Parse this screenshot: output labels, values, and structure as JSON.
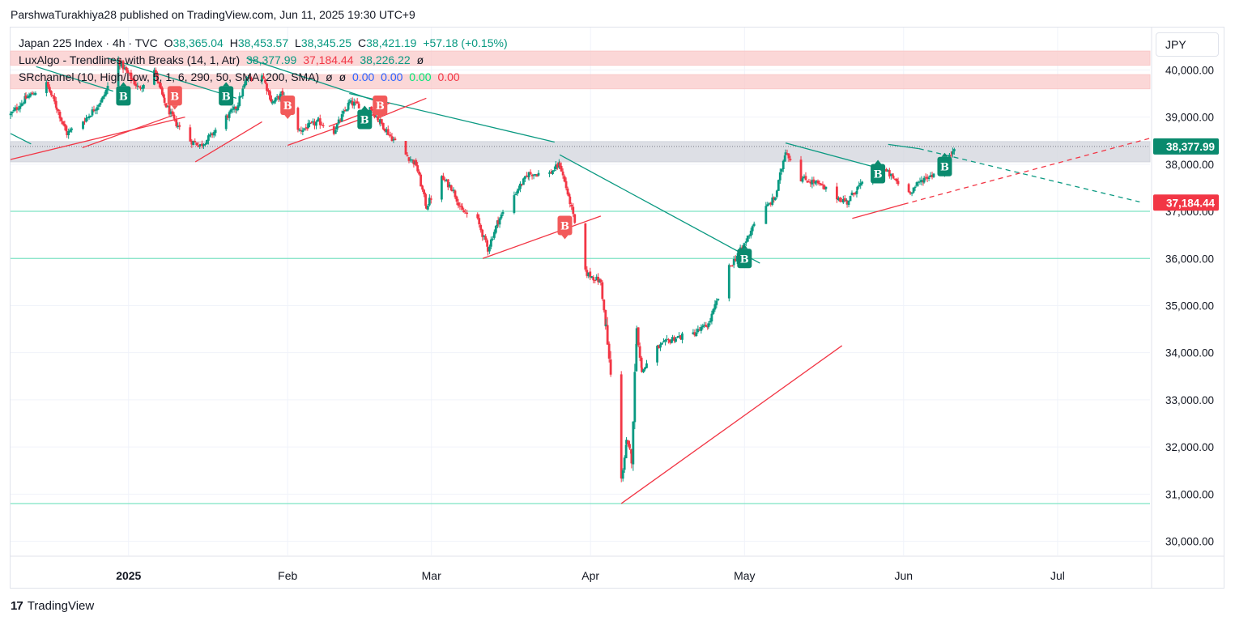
{
  "header": {
    "publisher_line": "ParshwaTurakhiya28 published on TradingView.com, Jun 11, 2025 19:30 UTC+9"
  },
  "legend": {
    "symbol": "Japan 225 Index · 4h · TVC",
    "o_label": "O",
    "o_value": "38,365.04",
    "h_label": "H",
    "h_value": "38,453.57",
    "l_label": "L",
    "l_value": "38,345.25",
    "c_label": "C",
    "c_value": "38,421.19",
    "change": "+57.18 (+0.15%)",
    "indicator1_name": "LuxAlgo - Trendlines with Breaks (14, 1, Atr)",
    "indicator1_v1": "38,377.99",
    "indicator1_v2": "37,184.44",
    "indicator1_v3": "38,226.22",
    "indicator1_v4": "ø",
    "indicator2_name": "SRchannel (10, High/Low, 5, 1, 6, 290, 50, SMA, 200, SMA)",
    "indicator2_v1": "ø",
    "indicator2_v2": "ø",
    "indicator2_v3": "0.00",
    "indicator2_v4": "0.00",
    "indicator2_v5": "0.00",
    "indicator2_v6": "0.00"
  },
  "currency_button": "JPY",
  "footer": {
    "brand": "TradingView",
    "logo_mark": "17"
  },
  "colors": {
    "up": "#089981",
    "down": "#f23645",
    "trend_teal": "#0a9981",
    "trend_red": "#f23645",
    "resistance_zone": "#f9c9c9",
    "mid_zone": "#d1d4dc",
    "support_line": "#7ee3c4"
  },
  "chart_data": {
    "type": "candlestick",
    "y_axis": {
      "ticks": [
        30000,
        31000,
        32000,
        33000,
        34000,
        35000,
        36000,
        37000,
        38000,
        39000,
        40000
      ],
      "tick_labels": [
        "30,000.00",
        "31,000.00",
        "32,000.00",
        "33,000.00",
        "34,000.00",
        "35,000.00",
        "36,000.00",
        "37,000.00",
        "38,000.00",
        "39,000.00",
        "40,000.00"
      ],
      "range": [
        29700,
        40900
      ]
    },
    "x_axis": {
      "range": [
        "2024-12-09",
        "2025-07-19"
      ],
      "ticks": [
        {
          "date": "2025-01-01",
          "label": "2025",
          "bold": true
        },
        {
          "date": "2025-02-01",
          "label": "Feb",
          "bold": false
        },
        {
          "date": "2025-03-01",
          "label": "Mar",
          "bold": false
        },
        {
          "date": "2025-04-01",
          "label": "Apr",
          "bold": false
        },
        {
          "date": "2025-05-01",
          "label": "May",
          "bold": false
        },
        {
          "date": "2025-06-01",
          "label": "Jun",
          "bold": false
        },
        {
          "date": "2025-07-01",
          "label": "Jul",
          "bold": false
        }
      ]
    },
    "price_path": [
      [
        "2024-12-09",
        39050
      ],
      [
        "2024-12-12",
        39400
      ],
      [
        "2024-12-16",
        39700
      ],
      [
        "2024-12-18",
        39200
      ],
      [
        "2024-12-20",
        38650
      ],
      [
        "2024-12-24",
        39000
      ],
      [
        "2024-12-27",
        39400
      ],
      [
        "2024-12-30",
        40200
      ],
      [
        "2025-01-03",
        39600
      ],
      [
        "2025-01-06",
        40000
      ],
      [
        "2025-01-08",
        39300
      ],
      [
        "2025-01-10",
        38900
      ],
      [
        "2025-01-13",
        38500
      ],
      [
        "2025-01-15",
        38400
      ],
      [
        "2025-01-17",
        38600
      ],
      [
        "2025-01-20",
        39000
      ],
      [
        "2025-01-22",
        39200
      ],
      [
        "2025-01-24",
        39800
      ],
      [
        "2025-01-27",
        39900
      ],
      [
        "2025-01-29",
        39300
      ],
      [
        "2025-01-31",
        39500
      ],
      [
        "2025-02-03",
        38700
      ],
      [
        "2025-02-05",
        38800
      ],
      [
        "2025-02-07",
        38900
      ],
      [
        "2025-02-10",
        38700
      ],
      [
        "2025-02-13",
        39300
      ],
      [
        "2025-02-17",
        39200
      ],
      [
        "2025-02-19",
        38900
      ],
      [
        "2025-02-21",
        38600
      ],
      [
        "2025-02-24",
        38200
      ],
      [
        "2025-02-26",
        38000
      ],
      [
        "2025-02-28",
        37100
      ],
      [
        "2025-03-03",
        37700
      ],
      [
        "2025-03-05",
        37500
      ],
      [
        "2025-03-07",
        37000
      ],
      [
        "2025-03-10",
        36800
      ],
      [
        "2025-03-12",
        36200
      ],
      [
        "2025-03-14",
        36800
      ],
      [
        "2025-03-18",
        37500
      ],
      [
        "2025-03-20",
        37800
      ],
      [
        "2025-03-24",
        37800
      ],
      [
        "2025-03-26",
        38000
      ],
      [
        "2025-03-28",
        37200
      ],
      [
        "2025-03-31",
        35700
      ],
      [
        "2025-04-03",
        35500
      ],
      [
        "2025-04-04",
        34500
      ],
      [
        "2025-04-07",
        31300
      ],
      [
        "2025-04-08",
        32100
      ],
      [
        "2025-04-09",
        31800
      ],
      [
        "2025-04-10",
        34500
      ],
      [
        "2025-04-11",
        33600
      ],
      [
        "2025-04-14",
        34100
      ],
      [
        "2025-04-17",
        34300
      ],
      [
        "2025-04-21",
        34400
      ],
      [
        "2025-04-24",
        34600
      ],
      [
        "2025-04-28",
        35800
      ],
      [
        "2025-05-01",
        36300
      ],
      [
        "2025-05-03",
        36800
      ],
      [
        "2025-05-07",
        37300
      ],
      [
        "2025-05-09",
        38300
      ],
      [
        "2025-05-12",
        37700
      ],
      [
        "2025-05-15",
        37600
      ],
      [
        "2025-05-19",
        37300
      ],
      [
        "2025-05-21",
        37200
      ],
      [
        "2025-05-23",
        37500
      ],
      [
        "2025-05-26",
        37700
      ],
      [
        "2025-05-28",
        37900
      ],
      [
        "2025-05-30",
        37700
      ],
      [
        "2025-06-02",
        37400
      ],
      [
        "2025-06-05",
        37700
      ],
      [
        "2025-06-09",
        37900
      ],
      [
        "2025-06-11",
        38421
      ]
    ],
    "zones": [
      {
        "name": "resistance-zone-upper",
        "low": 40100,
        "high": 40400,
        "color": "#f9c9c9"
      },
      {
        "name": "resistance-zone-lower",
        "low": 39600,
        "high": 39900,
        "color": "#f9c9c9"
      },
      {
        "name": "price-zone-gray",
        "low": 38050,
        "high": 38480,
        "color": "#d1d4dc"
      }
    ],
    "support_lines": [
      37000,
      36000,
      30800
    ],
    "trendlines": [
      {
        "color": "teal",
        "from": [
          "2024-12-14",
          40070
        ],
        "to": [
          "2024-12-29",
          39550
        ]
      },
      {
        "color": "teal",
        "from": [
          "2024-12-28",
          40250
        ],
        "to": [
          "2025-01-22",
          39400
        ]
      },
      {
        "color": "teal",
        "from": [
          "2025-01-24",
          40250
        ],
        "to": [
          "2025-02-18",
          39350
        ]
      },
      {
        "color": "teal",
        "from": [
          "2025-02-13",
          39500
        ],
        "to": [
          "2025-03-25",
          38470
        ]
      },
      {
        "color": "teal",
        "from": [
          "2025-03-26",
          38200
        ],
        "to": [
          "2025-05-04",
          35900
        ]
      },
      {
        "color": "teal",
        "from": [
          "2025-05-09",
          38450
        ],
        "to": [
          "2025-05-26",
          37950
        ]
      },
      {
        "color": "teal",
        "from": [
          "2025-05-29",
          38420
        ],
        "to": [
          "2025-06-04",
          38330
        ]
      },
      {
        "color": "teal",
        "dashed": true,
        "from": [
          "2025-06-04",
          38330
        ],
        "to": [
          "2025-07-17",
          37200
        ]
      },
      {
        "color": "teal",
        "from": [
          "2024-12-09",
          38650
        ],
        "to": [
          "2024-12-13",
          38430
        ]
      },
      {
        "color": "red",
        "from": [
          "2024-12-09",
          38100
        ],
        "to": [
          "2025-01-12",
          39000
        ]
      },
      {
        "color": "red",
        "from": [
          "2024-12-23",
          38350
        ],
        "to": [
          "2025-01-10",
          39050
        ]
      },
      {
        "color": "red",
        "from": [
          "2025-01-14",
          38050
        ],
        "to": [
          "2025-01-27",
          38900
        ]
      },
      {
        "color": "red",
        "from": [
          "2025-02-01",
          38400
        ],
        "to": [
          "2025-02-19",
          39100
        ]
      },
      {
        "color": "red",
        "from": [
          "2025-02-09",
          38800
        ],
        "to": [
          "2025-02-21",
          39300
        ]
      },
      {
        "color": "red",
        "from": [
          "2025-02-19",
          39000
        ],
        "to": [
          "2025-02-28",
          39400
        ]
      },
      {
        "color": "red",
        "from": [
          "2025-03-11",
          36000
        ],
        "to": [
          "2025-04-03",
          36900
        ]
      },
      {
        "color": "red",
        "from": [
          "2025-04-07",
          30800
        ],
        "to": [
          "2025-05-20",
          34150
        ]
      },
      {
        "color": "red",
        "from": [
          "2025-05-22",
          36850
        ],
        "to": [
          "2025-06-01",
          37150
        ]
      },
      {
        "color": "red",
        "dashed": true,
        "from": [
          "2025-06-01",
          37150
        ],
        "to": [
          "2025-07-19",
          38550
        ]
      }
    ],
    "signals": [
      {
        "type": "B",
        "dir": "up",
        "date": "2024-12-31",
        "price": 39450
      },
      {
        "type": "B",
        "dir": "down",
        "date": "2025-01-10",
        "price": 39450
      },
      {
        "type": "B",
        "dir": "up",
        "date": "2025-01-20",
        "price": 39450
      },
      {
        "type": "B",
        "dir": "down",
        "date": "2025-02-01",
        "price": 39250
      },
      {
        "type": "B",
        "dir": "up",
        "date": "2025-02-16",
        "price": 38950
      },
      {
        "type": "B",
        "dir": "down",
        "date": "2025-02-19",
        "price": 39250
      },
      {
        "type": "B",
        "dir": "down",
        "date": "2025-03-27",
        "price": 36700
      },
      {
        "type": "B",
        "dir": "up",
        "date": "2025-05-01",
        "price": 36000
      },
      {
        "type": "B",
        "dir": "up",
        "date": "2025-05-27",
        "price": 37800
      },
      {
        "type": "B",
        "dir": "up",
        "date": "2025-06-09",
        "price": 37950
      }
    ],
    "price_tags": [
      {
        "label": "38,377.99",
        "value": 38377.99,
        "color": "#0a8a6e"
      },
      {
        "label": "37,184.44",
        "value": 37184.44,
        "color": "#f23645"
      }
    ]
  }
}
